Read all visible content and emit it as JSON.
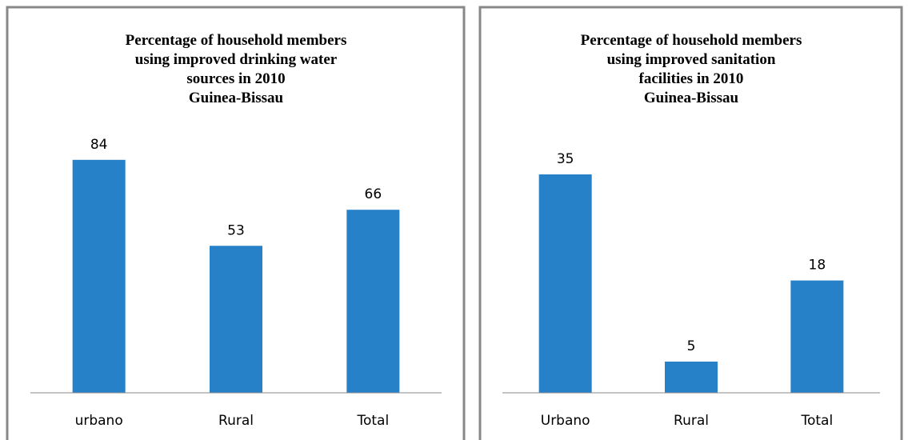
{
  "chart_data": [
    {
      "type": "bar",
      "title": [
        "Percentage of household members",
        "using improved drinking water",
        "sources in 2010",
        "Guinea-Bissau"
      ],
      "categories": [
        "urbano",
        "Rural",
        "Total"
      ],
      "values": [
        84,
        53,
        66
      ],
      "color": "#2681c8",
      "ylim": [
        0,
        90
      ]
    },
    {
      "type": "bar",
      "title": [
        "Percentage of household members",
        "using improved sanitation",
        "facilities in 2010",
        "Guinea-Bissau"
      ],
      "categories": [
        "Urbano",
        "Rural",
        "Total"
      ],
      "values": [
        35,
        5,
        18
      ],
      "color": "#2681c8",
      "ylim": [
        0,
        40
      ]
    }
  ]
}
